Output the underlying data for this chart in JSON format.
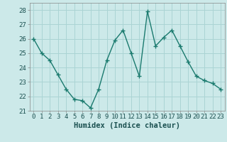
{
  "x": [
    0,
    1,
    2,
    3,
    4,
    5,
    6,
    7,
    8,
    9,
    10,
    11,
    12,
    13,
    14,
    15,
    16,
    17,
    18,
    19,
    20,
    21,
    22,
    23
  ],
  "y": [
    26.0,
    25.0,
    24.5,
    23.5,
    22.5,
    21.8,
    21.7,
    21.2,
    22.5,
    24.5,
    25.9,
    26.6,
    25.0,
    23.4,
    27.9,
    25.5,
    26.1,
    26.6,
    25.5,
    24.4,
    23.4,
    23.1,
    22.9,
    22.5
  ],
  "line_color": "#1a7a6e",
  "marker": "+",
  "marker_size": 4,
  "bg_color": "#cce9e9",
  "grid_color": "#aad4d4",
  "xlabel": "Humidex (Indice chaleur)",
  "xlim": [
    -0.5,
    23.5
  ],
  "ylim": [
    21.0,
    28.5
  ],
  "yticks": [
    21,
    22,
    23,
    24,
    25,
    26,
    27,
    28
  ],
  "xticks": [
    0,
    1,
    2,
    3,
    4,
    5,
    6,
    7,
    8,
    9,
    10,
    11,
    12,
    13,
    14,
    15,
    16,
    17,
    18,
    19,
    20,
    21,
    22,
    23
  ],
  "xlabel_fontsize": 7.5,
  "tick_fontsize": 6.5,
  "line_width": 1.0,
  "marker_color": "#1a7a6e"
}
